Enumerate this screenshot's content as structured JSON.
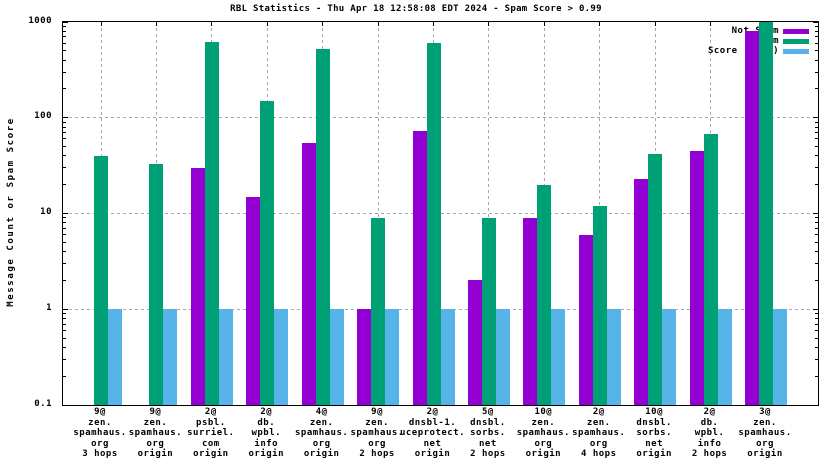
{
  "title": "RBL Statistics - Thu Apr 18 12:58:08 EDT 2024 - Spam Score > 0.99",
  "chart_data": {
    "type": "bar",
    "y_scale": "log",
    "ylabel": "Message Count or Spam Score",
    "ylim": [
      0.1,
      1000
    ],
    "yticks": [
      {
        "value": 1000,
        "label": "1000"
      },
      {
        "value": 100,
        "label": "100"
      },
      {
        "value": 10,
        "label": "10"
      },
      {
        "value": 1,
        "label": "1"
      },
      {
        "value": 0.1,
        "label": "0.1"
      }
    ],
    "grid_values": [
      100,
      10,
      1
    ],
    "grid": true,
    "legend_position": "top-right",
    "categories": [
      [
        "9@",
        "zen.",
        "spamhaus.",
        "org",
        "3 hops"
      ],
      [
        "9@",
        "zen.",
        "spamhaus.",
        "org",
        "origin"
      ],
      [
        "2@",
        "psbl.",
        "surriel.",
        "com",
        "origin"
      ],
      [
        "2@",
        "db.",
        "wpbl.",
        "info",
        "origin"
      ],
      [
        "4@",
        "zen.",
        "spamhaus.",
        "org",
        "origin"
      ],
      [
        "9@",
        "zen.",
        "spamhaus.",
        "org",
        "2 hops"
      ],
      [
        "2@",
        "dnsbl-1.",
        "uceprotect.",
        "net",
        "origin"
      ],
      [
        "5@",
        "dnsbl.",
        "sorbs.",
        "net",
        "2 hops"
      ],
      [
        "10@",
        "zen.",
        "spamhaus.",
        "org",
        "origin"
      ],
      [
        "2@",
        "zen.",
        "spamhaus.",
        "org",
        "4 hops"
      ],
      [
        "10@",
        "dnsbl.",
        "sorbs.",
        "net",
        "origin"
      ],
      [
        "2@",
        "db.",
        "wpbl.",
        "info",
        "2 hops"
      ],
      [
        "3@",
        "zen.",
        "spamhaus.",
        "org",
        "origin"
      ]
    ],
    "series": [
      {
        "name": "Not Spam",
        "color": "#9400d3",
        "values": [
          0,
          0,
          30,
          15,
          55,
          1,
          72,
          2,
          9,
          6,
          23,
          45,
          800
        ]
      },
      {
        "name": "Spam",
        "color": "#00a077",
        "values": [
          40,
          33,
          620,
          150,
          520,
          9,
          600,
          9,
          20,
          12,
          42,
          68,
          1100
        ]
      },
      {
        "name": "Score (0..1)",
        "color": "#56b4e9",
        "values": [
          1,
          1,
          1,
          1,
          1,
          1,
          1,
          1,
          1,
          1,
          1,
          1,
          1
        ]
      }
    ],
    "colors": {
      "grid": "#a8a8a8",
      "axis": "#000000",
      "background": "#ffffff"
    }
  }
}
